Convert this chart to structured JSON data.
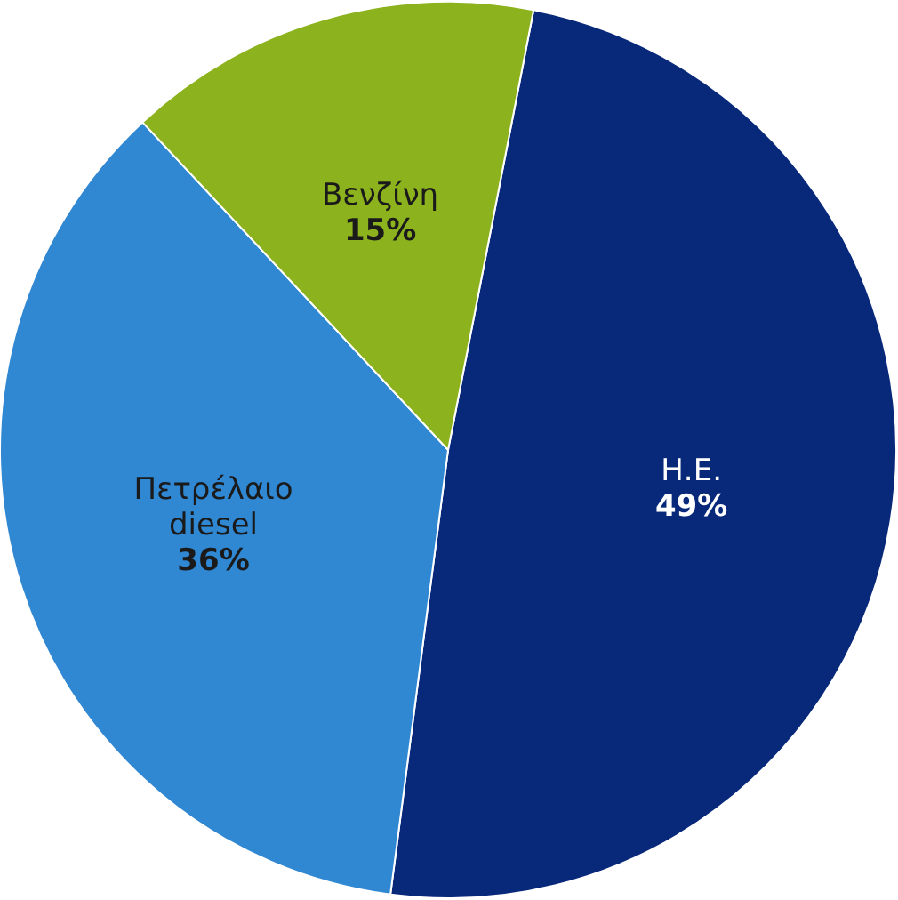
{
  "chart_data": {
    "type": "pie",
    "categories": [
      "Η.Ε.",
      "Πετρέλαιο diesel",
      "Βενζίνη"
    ],
    "values": [
      49,
      36,
      15
    ],
    "colors": [
      "#08297a",
      "#3087d2",
      "#8cb21e"
    ],
    "value_labels": [
      "49%",
      "36%",
      "15%"
    ]
  }
}
